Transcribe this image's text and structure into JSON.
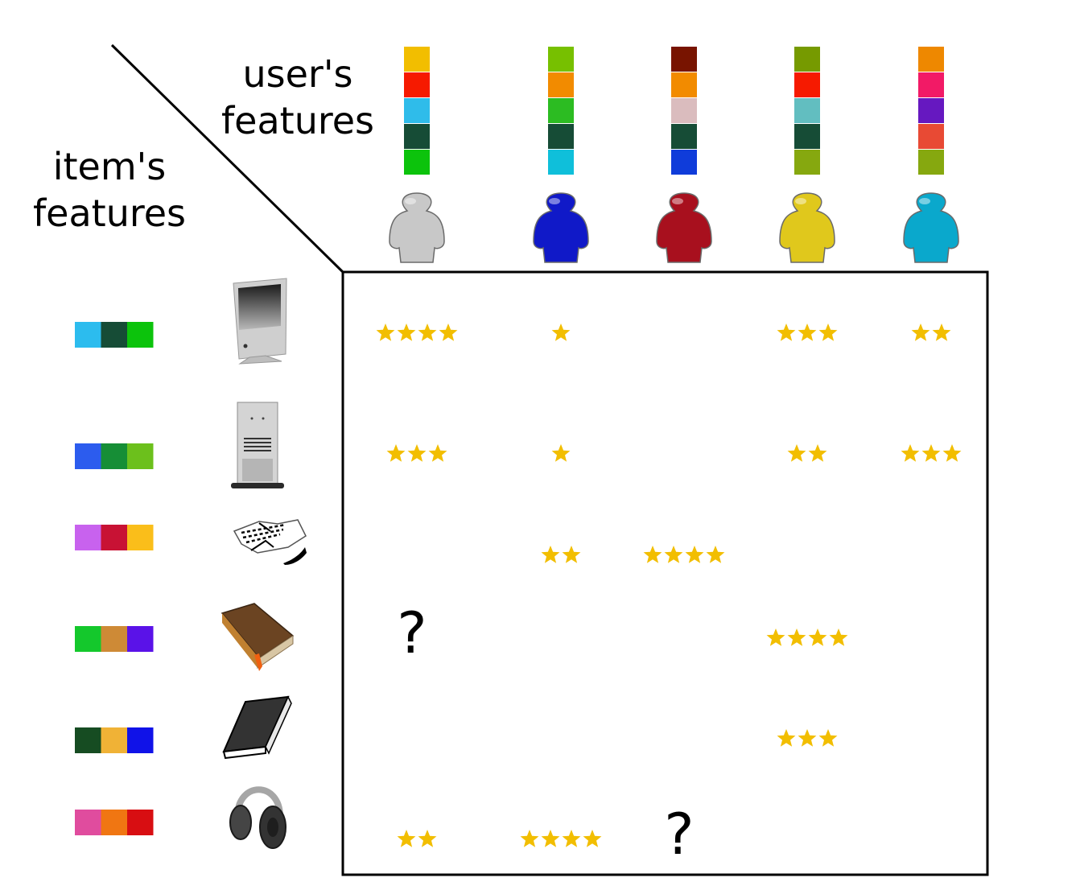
{
  "labels": {
    "users": "user's features",
    "users_line1": "user's",
    "users_line2": "features",
    "items": "item's features",
    "items_line1": "item's",
    "items_line2": "features"
  },
  "users": [
    {
      "icon": "person-icon",
      "color": "#c8c8c8",
      "features": [
        "#f2be00",
        "#f61a00",
        "#2fbcea",
        "#164c36",
        "#0cc30c"
      ]
    },
    {
      "icon": "person-icon",
      "color": "#1019c8",
      "features": [
        "#77c000",
        "#f28b00",
        "#2cbc22",
        "#164c36",
        "#0fbfda"
      ]
    },
    {
      "icon": "person-icon",
      "color": "#a8101e",
      "features": [
        "#781400",
        "#f28b00",
        "#dabcbe",
        "#164c36",
        "#0f3cda"
      ]
    },
    {
      "icon": "person-icon",
      "color": "#e0c81c",
      "features": [
        "#769a00",
        "#f61a00",
        "#62bec0",
        "#164c36",
        "#86a80f"
      ]
    },
    {
      "icon": "person-icon",
      "color": "#0aa8cc",
      "features": [
        "#ee8800",
        "#f21a66",
        "#6618c0",
        "#e84a34",
        "#86a80f"
      ]
    }
  ],
  "items": [
    {
      "icon": "imac-computer-icon",
      "features": [
        "#2cbcee",
        "#164c36",
        "#0cc30c"
      ]
    },
    {
      "icon": "tower-pc-icon",
      "features": [
        "#2c5cee",
        "#168e36",
        "#6cc01c"
      ]
    },
    {
      "icon": "sneaker-icon",
      "features": [
        "#c862ee",
        "#c81234",
        "#fabe1a"
      ]
    },
    {
      "icon": "brown-book-icon",
      "features": [
        "#14c82c",
        "#ce8a36",
        "#5a12e8"
      ]
    },
    {
      "icon": "black-book-icon",
      "features": [
        "#164c22",
        "#f0b236",
        "#1012e8"
      ]
    },
    {
      "icon": "headphones-icon",
      "features": [
        "#e04c9e",
        "#f07612",
        "#d80e12"
      ]
    }
  ],
  "ratings": [
    [
      4,
      1,
      0,
      3,
      2
    ],
    [
      3,
      1,
      0,
      2,
      3
    ],
    [
      0,
      2,
      4,
      0,
      0
    ],
    [
      "?",
      0,
      0,
      4,
      0
    ],
    [
      0,
      0,
      0,
      3,
      0
    ],
    [
      2,
      4,
      "?",
      0,
      0
    ]
  ],
  "colors": {
    "star": "#f2be00",
    "frame": "#000000"
  }
}
